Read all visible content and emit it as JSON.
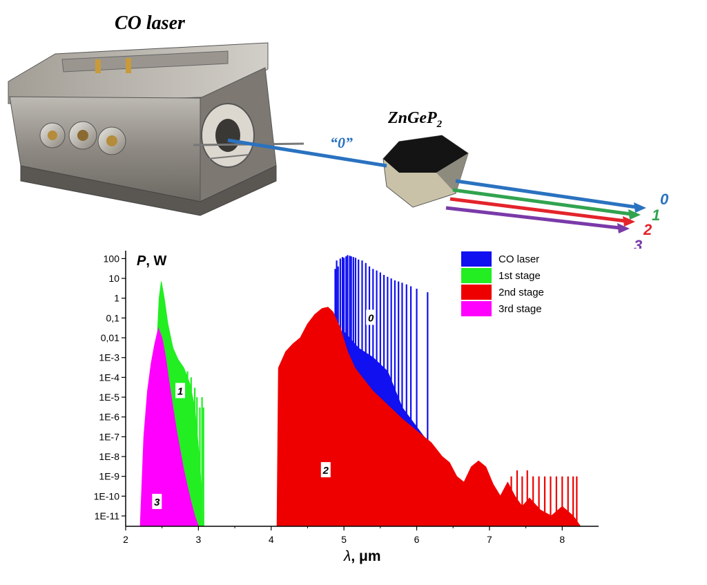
{
  "setup": {
    "laser_label": "CO laser",
    "crystal_label": "ZnGeP",
    "crystal_sub": "2",
    "input_beam_label": "“0”",
    "output_beams": [
      {
        "label": "0",
        "color": "#2a72c0"
      },
      {
        "label": "1",
        "color": "#31a34f"
      },
      {
        "label": "2",
        "color": "#e3242b"
      },
      {
        "label": "3",
        "color": "#7a3aa8"
      }
    ]
  },
  "chart_data": {
    "type": "area",
    "title": "",
    "ylabel_symbol": "P",
    "ylabel_unit": ", W",
    "xlabel_symbol": "λ",
    "xlabel_unit": ", μm",
    "y_scale": "log",
    "xlim": [
      2,
      8.5
    ],
    "ylim": [
      3e-12,
      250
    ],
    "x_ticks": [
      2,
      3,
      4,
      5,
      6,
      7,
      8
    ],
    "y_ticks": [
      {
        "v": 100,
        "label": "100"
      },
      {
        "v": 10,
        "label": "10"
      },
      {
        "v": 1,
        "label": "1"
      },
      {
        "v": 0.1,
        "label": "0,1"
      },
      {
        "v": 0.01,
        "label": "0,01"
      },
      {
        "v": 0.001,
        "label": "1E-3"
      },
      {
        "v": 0.0001,
        "label": "1E-4"
      },
      {
        "v": 1e-05,
        "label": "1E-5"
      },
      {
        "v": 1e-06,
        "label": "1E-6"
      },
      {
        "v": 1e-07,
        "label": "1E-7"
      },
      {
        "v": 1e-08,
        "label": "1E-8"
      },
      {
        "v": 1e-09,
        "label": "1E-9"
      },
      {
        "v": 1e-10,
        "label": "1E-10"
      },
      {
        "v": 1e-11,
        "label": "1E-11"
      }
    ],
    "legend_position": "top-right",
    "series": [
      {
        "name": "CO laser",
        "color": "#1010f0",
        "curve_label": "0",
        "label_at": [
          5.37,
          0.1
        ],
        "lines": [
          [
            4.88,
            30
          ],
          [
            4.9,
            80
          ],
          [
            4.92,
            40
          ],
          [
            4.95,
            100
          ],
          [
            4.98,
            120
          ],
          [
            5.0,
            110
          ],
          [
            5.03,
            130
          ],
          [
            5.05,
            150
          ],
          [
            5.08,
            140
          ],
          [
            5.1,
            130
          ],
          [
            5.13,
            120
          ],
          [
            5.16,
            110
          ],
          [
            5.2,
            90
          ],
          [
            5.25,
            80
          ],
          [
            5.3,
            60
          ],
          [
            5.35,
            40
          ],
          [
            5.4,
            30
          ],
          [
            5.45,
            25
          ],
          [
            5.5,
            20
          ],
          [
            5.55,
            15
          ],
          [
            5.6,
            12
          ],
          [
            5.65,
            10
          ],
          [
            5.7,
            8
          ],
          [
            5.75,
            7
          ],
          [
            5.8,
            6
          ],
          [
            5.86,
            5
          ],
          [
            5.92,
            4
          ],
          [
            6.0,
            3
          ],
          [
            6.15,
            2
          ]
        ],
        "envelope": [
          [
            4.9,
            3e-12
          ],
          [
            5.0,
            0.02
          ],
          [
            5.2,
            0.003
          ],
          [
            5.4,
            0.001
          ],
          [
            5.6,
            0.0002
          ],
          [
            5.8,
            3e-06
          ],
          [
            6.1,
            1e-07
          ],
          [
            6.16,
            3e-12
          ]
        ]
      },
      {
        "name": "1st stage",
        "color": "#22ee22",
        "curve_label": "1",
        "label_at": [
          2.75,
          2e-05
        ],
        "envelope": [
          [
            2.38,
            3e-12
          ],
          [
            2.42,
            0.001
          ],
          [
            2.46,
            1
          ],
          [
            2.49,
            7
          ],
          [
            2.53,
            1
          ],
          [
            2.58,
            0.05
          ],
          [
            2.65,
            0.003
          ],
          [
            2.72,
            0.0008
          ],
          [
            2.8,
            0.0003
          ],
          [
            2.88,
            5e-05
          ],
          [
            2.95,
            3e-06
          ],
          [
            3.0,
            3e-08
          ],
          [
            3.03,
            1e-09
          ],
          [
            3.06,
            3e-12
          ]
        ],
        "lines": [
          [
            2.85,
            0.0002
          ],
          [
            2.9,
            0.0001
          ],
          [
            2.95,
            3e-05
          ],
          [
            2.98,
            1e-05
          ],
          [
            3.02,
            3e-06
          ],
          [
            3.05,
            1e-05
          ],
          [
            3.07,
            3e-06
          ]
        ]
      },
      {
        "name": "2nd stage",
        "color": "#ee0000",
        "curve_label": "2",
        "label_at": [
          4.75,
          2e-09
        ],
        "envelope": [
          [
            4.08,
            3e-12
          ],
          [
            4.1,
            0.0003
          ],
          [
            4.2,
            0.002
          ],
          [
            4.3,
            0.005
          ],
          [
            4.4,
            0.01
          ],
          [
            4.5,
            0.05
          ],
          [
            4.6,
            0.15
          ],
          [
            4.7,
            0.3
          ],
          [
            4.78,
            0.35
          ],
          [
            4.85,
            0.2
          ],
          [
            4.95,
            0.03
          ],
          [
            5.05,
            0.002
          ],
          [
            5.15,
            0.0003
          ],
          [
            5.25,
            0.0001
          ],
          [
            5.4,
            2e-05
          ],
          [
            5.6,
            4e-06
          ],
          [
            5.8,
            8e-07
          ],
          [
            6.0,
            2e-07
          ],
          [
            6.2,
            5e-08
          ],
          [
            6.35,
            1e-08
          ],
          [
            6.45,
            5e-09
          ],
          [
            6.55,
            1e-09
          ],
          [
            6.65,
            5e-10
          ],
          [
            6.75,
            3e-09
          ],
          [
            6.85,
            6e-09
          ],
          [
            6.95,
            3e-09
          ],
          [
            7.05,
            4e-10
          ],
          [
            7.15,
            1e-10
          ],
          [
            7.25,
            5e-10
          ],
          [
            7.35,
            1e-10
          ],
          [
            7.45,
            3e-11
          ],
          [
            7.55,
            8e-11
          ],
          [
            7.7,
            2e-11
          ],
          [
            7.85,
            1e-11
          ],
          [
            8.0,
            3e-11
          ],
          [
            8.15,
            1e-11
          ],
          [
            8.25,
            3e-12
          ]
        ],
        "lines": [
          [
            7.3,
            1e-09
          ],
          [
            7.38,
            2e-09
          ],
          [
            7.45,
            1e-09
          ],
          [
            7.52,
            2e-09
          ],
          [
            7.6,
            1e-09
          ],
          [
            7.68,
            1e-09
          ],
          [
            7.76,
            1e-09
          ],
          [
            7.84,
            1e-09
          ],
          [
            7.92,
            1e-09
          ],
          [
            8.0,
            1e-09
          ],
          [
            8.08,
            1e-09
          ],
          [
            8.15,
            1e-09
          ],
          [
            8.2,
            1e-09
          ]
        ]
      },
      {
        "name": "3rd stage",
        "color": "#ff00ff",
        "curve_label": "3",
        "label_at": [
          2.43,
          5e-11
        ],
        "envelope": [
          [
            2.2,
            3e-12
          ],
          [
            2.25,
            1e-07
          ],
          [
            2.3,
            2e-05
          ],
          [
            2.35,
            0.0005
          ],
          [
            2.4,
            0.005
          ],
          [
            2.45,
            0.03
          ],
          [
            2.5,
            0.01
          ],
          [
            2.55,
            0.001
          ],
          [
            2.6,
            5e-05
          ],
          [
            2.65,
            3e-06
          ],
          [
            2.7,
            2e-07
          ],
          [
            2.75,
            2e-08
          ],
          [
            2.8,
            2e-09
          ],
          [
            2.85,
            3e-10
          ],
          [
            2.9,
            5e-11
          ],
          [
            2.95,
            1e-11
          ],
          [
            3.0,
            3e-12
          ]
        ],
        "lines": []
      }
    ]
  }
}
